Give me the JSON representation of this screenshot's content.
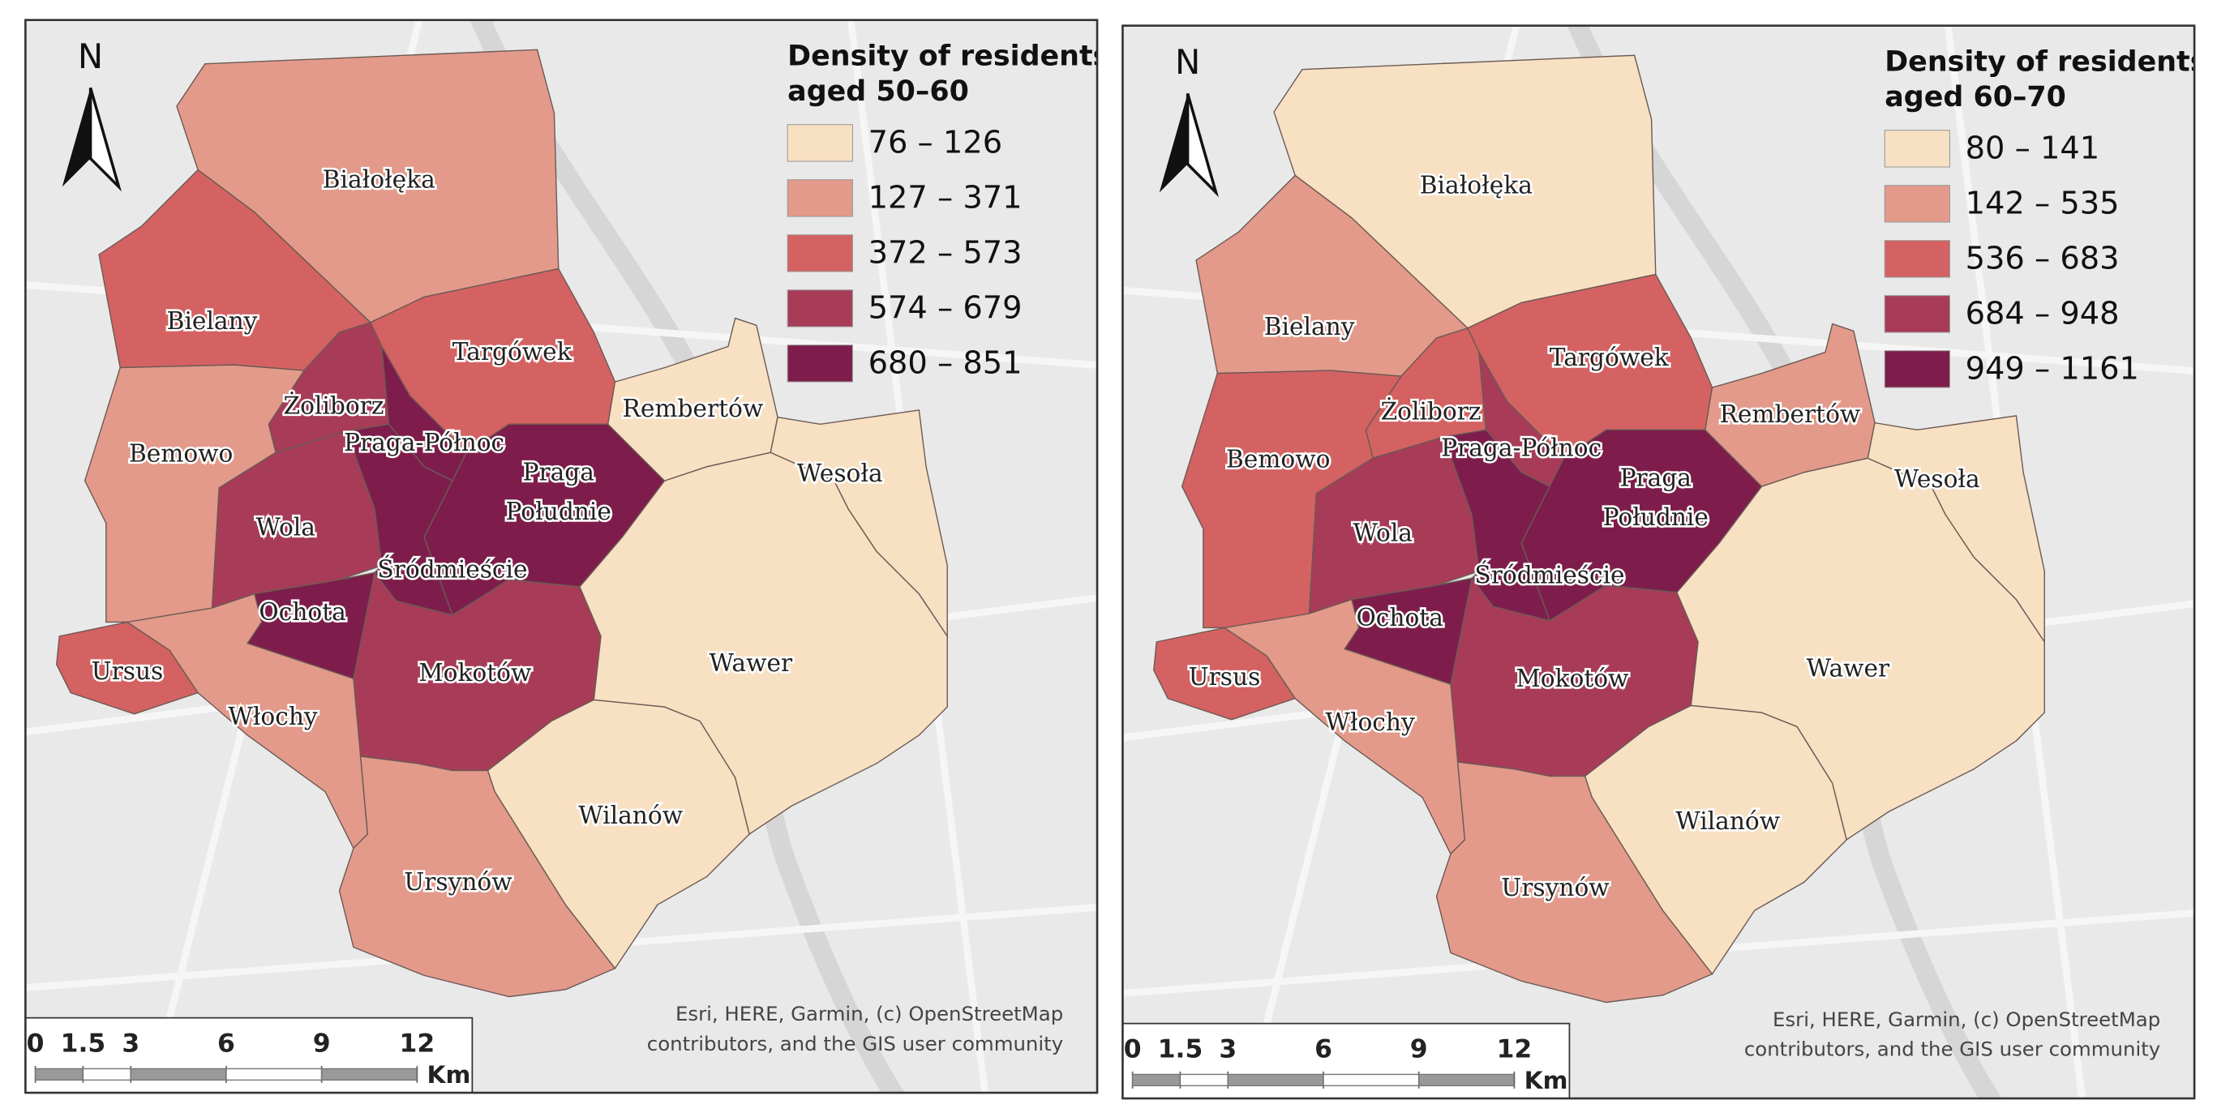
{
  "maps": [
    {
      "legend_title": [
        "Density of residents",
        "aged 50–60"
      ],
      "classes": [
        {
          "label": "76 – 126",
          "color": "#f8e0c2"
        },
        {
          "label": "127 – 371",
          "color": "#e39a8a"
        },
        {
          "label": "372 – 573",
          "color": "#d46262"
        },
        {
          "label": "574 – 679",
          "color": "#a83c58"
        },
        {
          "label": "680 – 851",
          "color": "#7e1d4b"
        }
      ],
      "districts": [
        {
          "label": "Białołęka",
          "color": "#e39a8a"
        },
        {
          "label": "Bielany",
          "color": "#d46262"
        },
        {
          "label": "Targówek",
          "color": "#d46262"
        },
        {
          "label": "Żoliborz",
          "color": "#a83c58"
        },
        {
          "label": "Bemowo",
          "color": "#e39a8a"
        },
        {
          "label": "Praga-Północ",
          "color": "#7e1d4b"
        },
        {
          "label": [
            "Praga",
            "Południe"
          ],
          "color": "#7e1d4b"
        },
        {
          "label": "Wola",
          "color": "#a83c58"
        },
        {
          "label": "Śródmieście",
          "color": "#7e1d4b"
        },
        {
          "label": "Ochota",
          "color": "#7e1d4b"
        },
        {
          "label": "Mokotów",
          "color": "#a83c58"
        },
        {
          "label": "Ursus",
          "color": "#d46262"
        },
        {
          "label": "Włochy",
          "color": "#e39a8a"
        },
        {
          "label": "Ursynów",
          "color": "#e39a8a"
        },
        {
          "label": "Wilanów",
          "color": "#f8e0c2"
        },
        {
          "label": "Wawer",
          "color": "#f8e0c2"
        },
        {
          "label": "Rembertów",
          "color": "#f8e0c2"
        },
        {
          "label": "Wesoła",
          "color": "#f8e0c2"
        }
      ],
      "north": "N",
      "scale_ticks": [
        0,
        1.5,
        3,
        6,
        9,
        12
      ],
      "scale_unit": "Km",
      "attribution": [
        "Esri, HERE, Garmin, (c) OpenStreetMap",
        "contributors, and the GIS user community"
      ]
    },
    {
      "legend_title": [
        "Density of residents",
        "aged 60–70"
      ],
      "classes": [
        {
          "label": "80 – 141",
          "color": "#f8e0c2"
        },
        {
          "label": "142 – 535",
          "color": "#e39a8a"
        },
        {
          "label": "536 – 683",
          "color": "#d46262"
        },
        {
          "label": "684 – 948",
          "color": "#a83c58"
        },
        {
          "label": "949 – 1161",
          "color": "#7e1d4b"
        }
      ],
      "districts": [
        {
          "label": "Białołęka",
          "color": "#f8e0c2"
        },
        {
          "label": "Bielany",
          "color": "#e39a8a"
        },
        {
          "label": "Targówek",
          "color": "#d46262"
        },
        {
          "label": "Żoliborz",
          "color": "#d46262"
        },
        {
          "label": "Bemowo",
          "color": "#d46262"
        },
        {
          "label": "Praga-Północ",
          "color": "#a83c58"
        },
        {
          "label": [
            "Praga",
            "Południe"
          ],
          "color": "#7e1d4b"
        },
        {
          "label": "Wola",
          "color": "#a83c58"
        },
        {
          "label": "Śródmieście",
          "color": "#7e1d4b"
        },
        {
          "label": "Ochota",
          "color": "#7e1d4b"
        },
        {
          "label": "Mokotów",
          "color": "#a83c58"
        },
        {
          "label": "Ursus",
          "color": "#d46262"
        },
        {
          "label": "Włochy",
          "color": "#e39a8a"
        },
        {
          "label": "Ursynów",
          "color": "#e39a8a"
        },
        {
          "label": "Wilanów",
          "color": "#f8e0c2"
        },
        {
          "label": "Wawer",
          "color": "#f8e0c2"
        },
        {
          "label": "Rembertów",
          "color": "#e39a8a"
        },
        {
          "label": "Wesoła",
          "color": "#f8e0c2"
        }
      ],
      "north": "N",
      "scale_ticks": [
        0,
        1.5,
        3,
        6,
        9,
        12
      ],
      "scale_unit": "Km",
      "attribution": [
        "Esri, HERE, Garmin, (c) OpenStreetMap",
        "contributors, and the GIS user community"
      ]
    }
  ]
}
